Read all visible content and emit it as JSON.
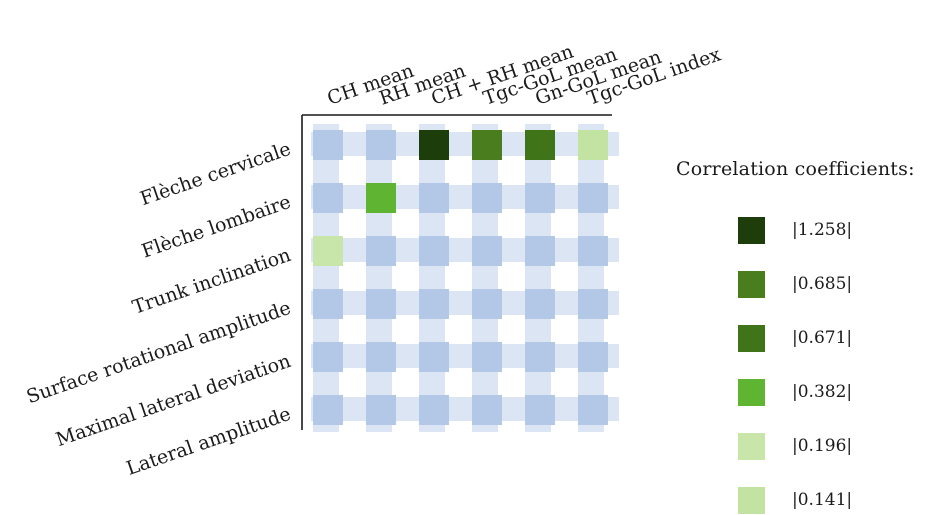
{
  "chart_data": {
    "type": "heatmap",
    "columns": [
      "CH mean",
      "RH mean",
      "CH + RH mean",
      "Tgc-GoL mean",
      "Gn-GoL mean",
      "Tgc-GoL index"
    ],
    "rows": [
      "Flèche cervicale",
      "Flèche lombaire",
      "Trunk inclination",
      "Surface rotational amplitude",
      "Maximal lateral deviation",
      "Lateral amplitude"
    ],
    "cells": [
      {
        "row": "Flèche cervicale",
        "column": "CH + RH mean",
        "value": 1.258,
        "color": "#1d3d0a"
      },
      {
        "row": "Flèche cervicale",
        "column": "Tgc-GoL mean",
        "value": 0.685,
        "color": "#4a7d1e"
      },
      {
        "row": "Flèche cervicale",
        "column": "Gn-GoL mean",
        "value": 0.671,
        "color": "#3f7419"
      },
      {
        "row": "Flèche cervicale",
        "column": "Tgc-GoL index",
        "value": 0.141,
        "color": "#c3e3a2"
      },
      {
        "row": "Flèche lombaire",
        "column": "RH mean",
        "value": 0.382,
        "color": "#5fb431"
      },
      {
        "row": "Trunk inclination",
        "column": "CH mean",
        "value": 0.196,
        "color": "#c8e6aa"
      }
    ],
    "empty_cell_color": "#b3c8e6",
    "legend": {
      "title": "Correlation coefficients:",
      "entries": [
        {
          "label": "|1.258|",
          "color": "#1d3d0a"
        },
        {
          "label": "|0.685|",
          "color": "#4a7d1e"
        },
        {
          "label": "|0.671|",
          "color": "#3f7419"
        },
        {
          "label": "|0.382|",
          "color": "#5fb431"
        },
        {
          "label": "|0.196|",
          "color": "#c8e6aa"
        },
        {
          "label": "|0.141|",
          "color": "#c3e3a2"
        }
      ]
    }
  }
}
